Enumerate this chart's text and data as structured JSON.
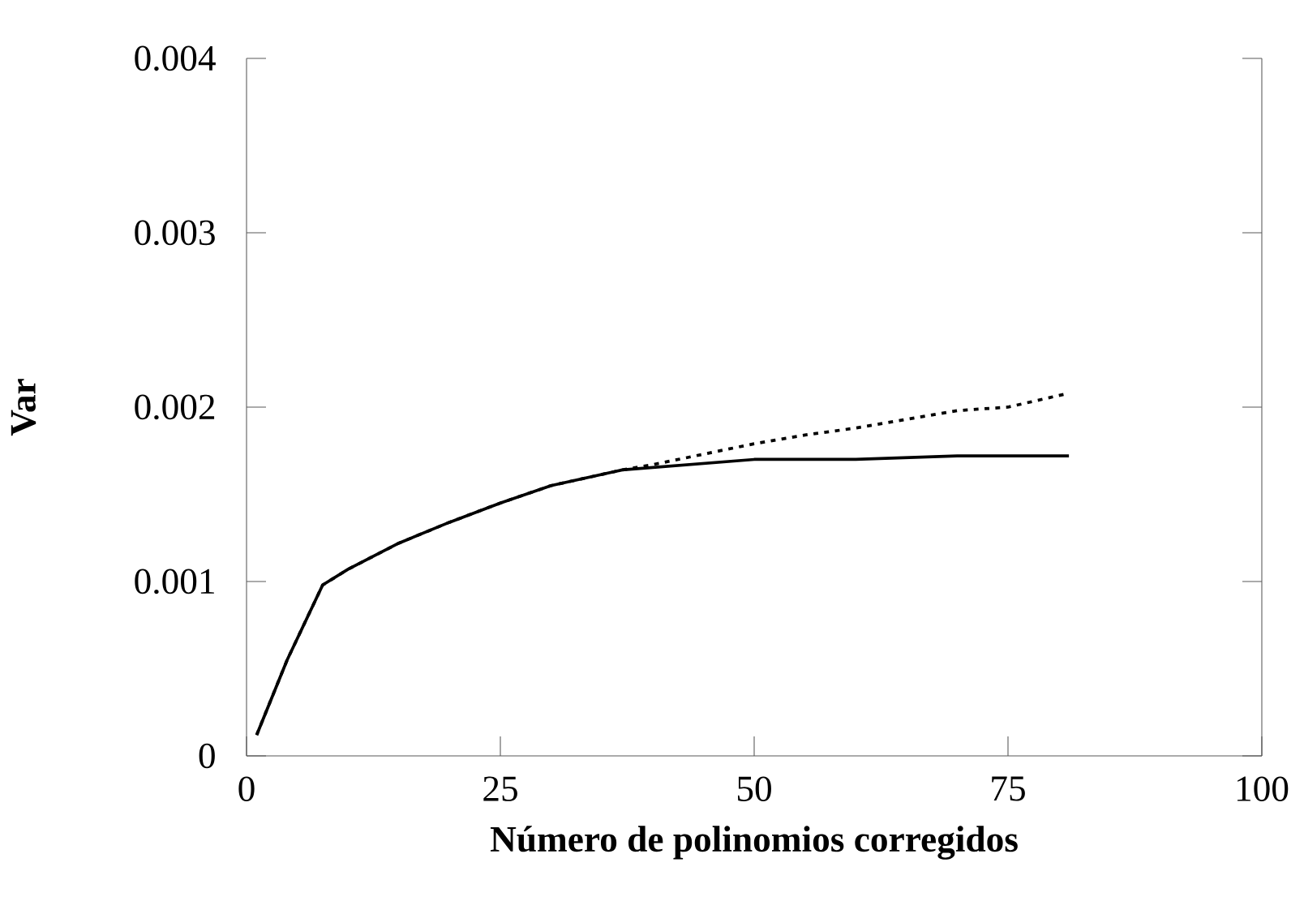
{
  "chart_data": {
    "type": "line",
    "xlabel": "Número de polinomios corregidos",
    "ylabel": "Var",
    "xlim": [
      0,
      100
    ],
    "xticks": [
      0,
      25,
      50,
      75,
      100
    ],
    "ylim": [
      0,
      0.004
    ],
    "yticks": [
      0,
      0.001,
      0.002,
      0.003,
      0.004
    ],
    "grid": false,
    "series": [
      {
        "color": "#000000",
        "line_style": "solid",
        "x": [
          1,
          4,
          7.5,
          10,
          15,
          20,
          25,
          30,
          37,
          50,
          60,
          70,
          81
        ],
        "values": [
          0.00012,
          0.00055,
          0.00098,
          0.00107,
          0.00122,
          0.00134,
          0.00145,
          0.00155,
          0.00164,
          0.0017,
          0.0017,
          0.00172,
          0.00172
        ]
      },
      {
        "color": "#000000",
        "line_style": "dotted",
        "x": [
          1,
          4,
          7.5,
          10,
          15,
          20,
          25,
          30,
          37,
          40,
          45,
          50,
          55,
          60,
          65,
          70,
          75,
          81
        ],
        "values": [
          0.00012,
          0.00055,
          0.00098,
          0.00107,
          0.00122,
          0.00134,
          0.00145,
          0.00155,
          0.00164,
          0.00167,
          0.00173,
          0.00179,
          0.00184,
          0.00188,
          0.00193,
          0.00198,
          0.002,
          0.00208
        ]
      }
    ]
  }
}
